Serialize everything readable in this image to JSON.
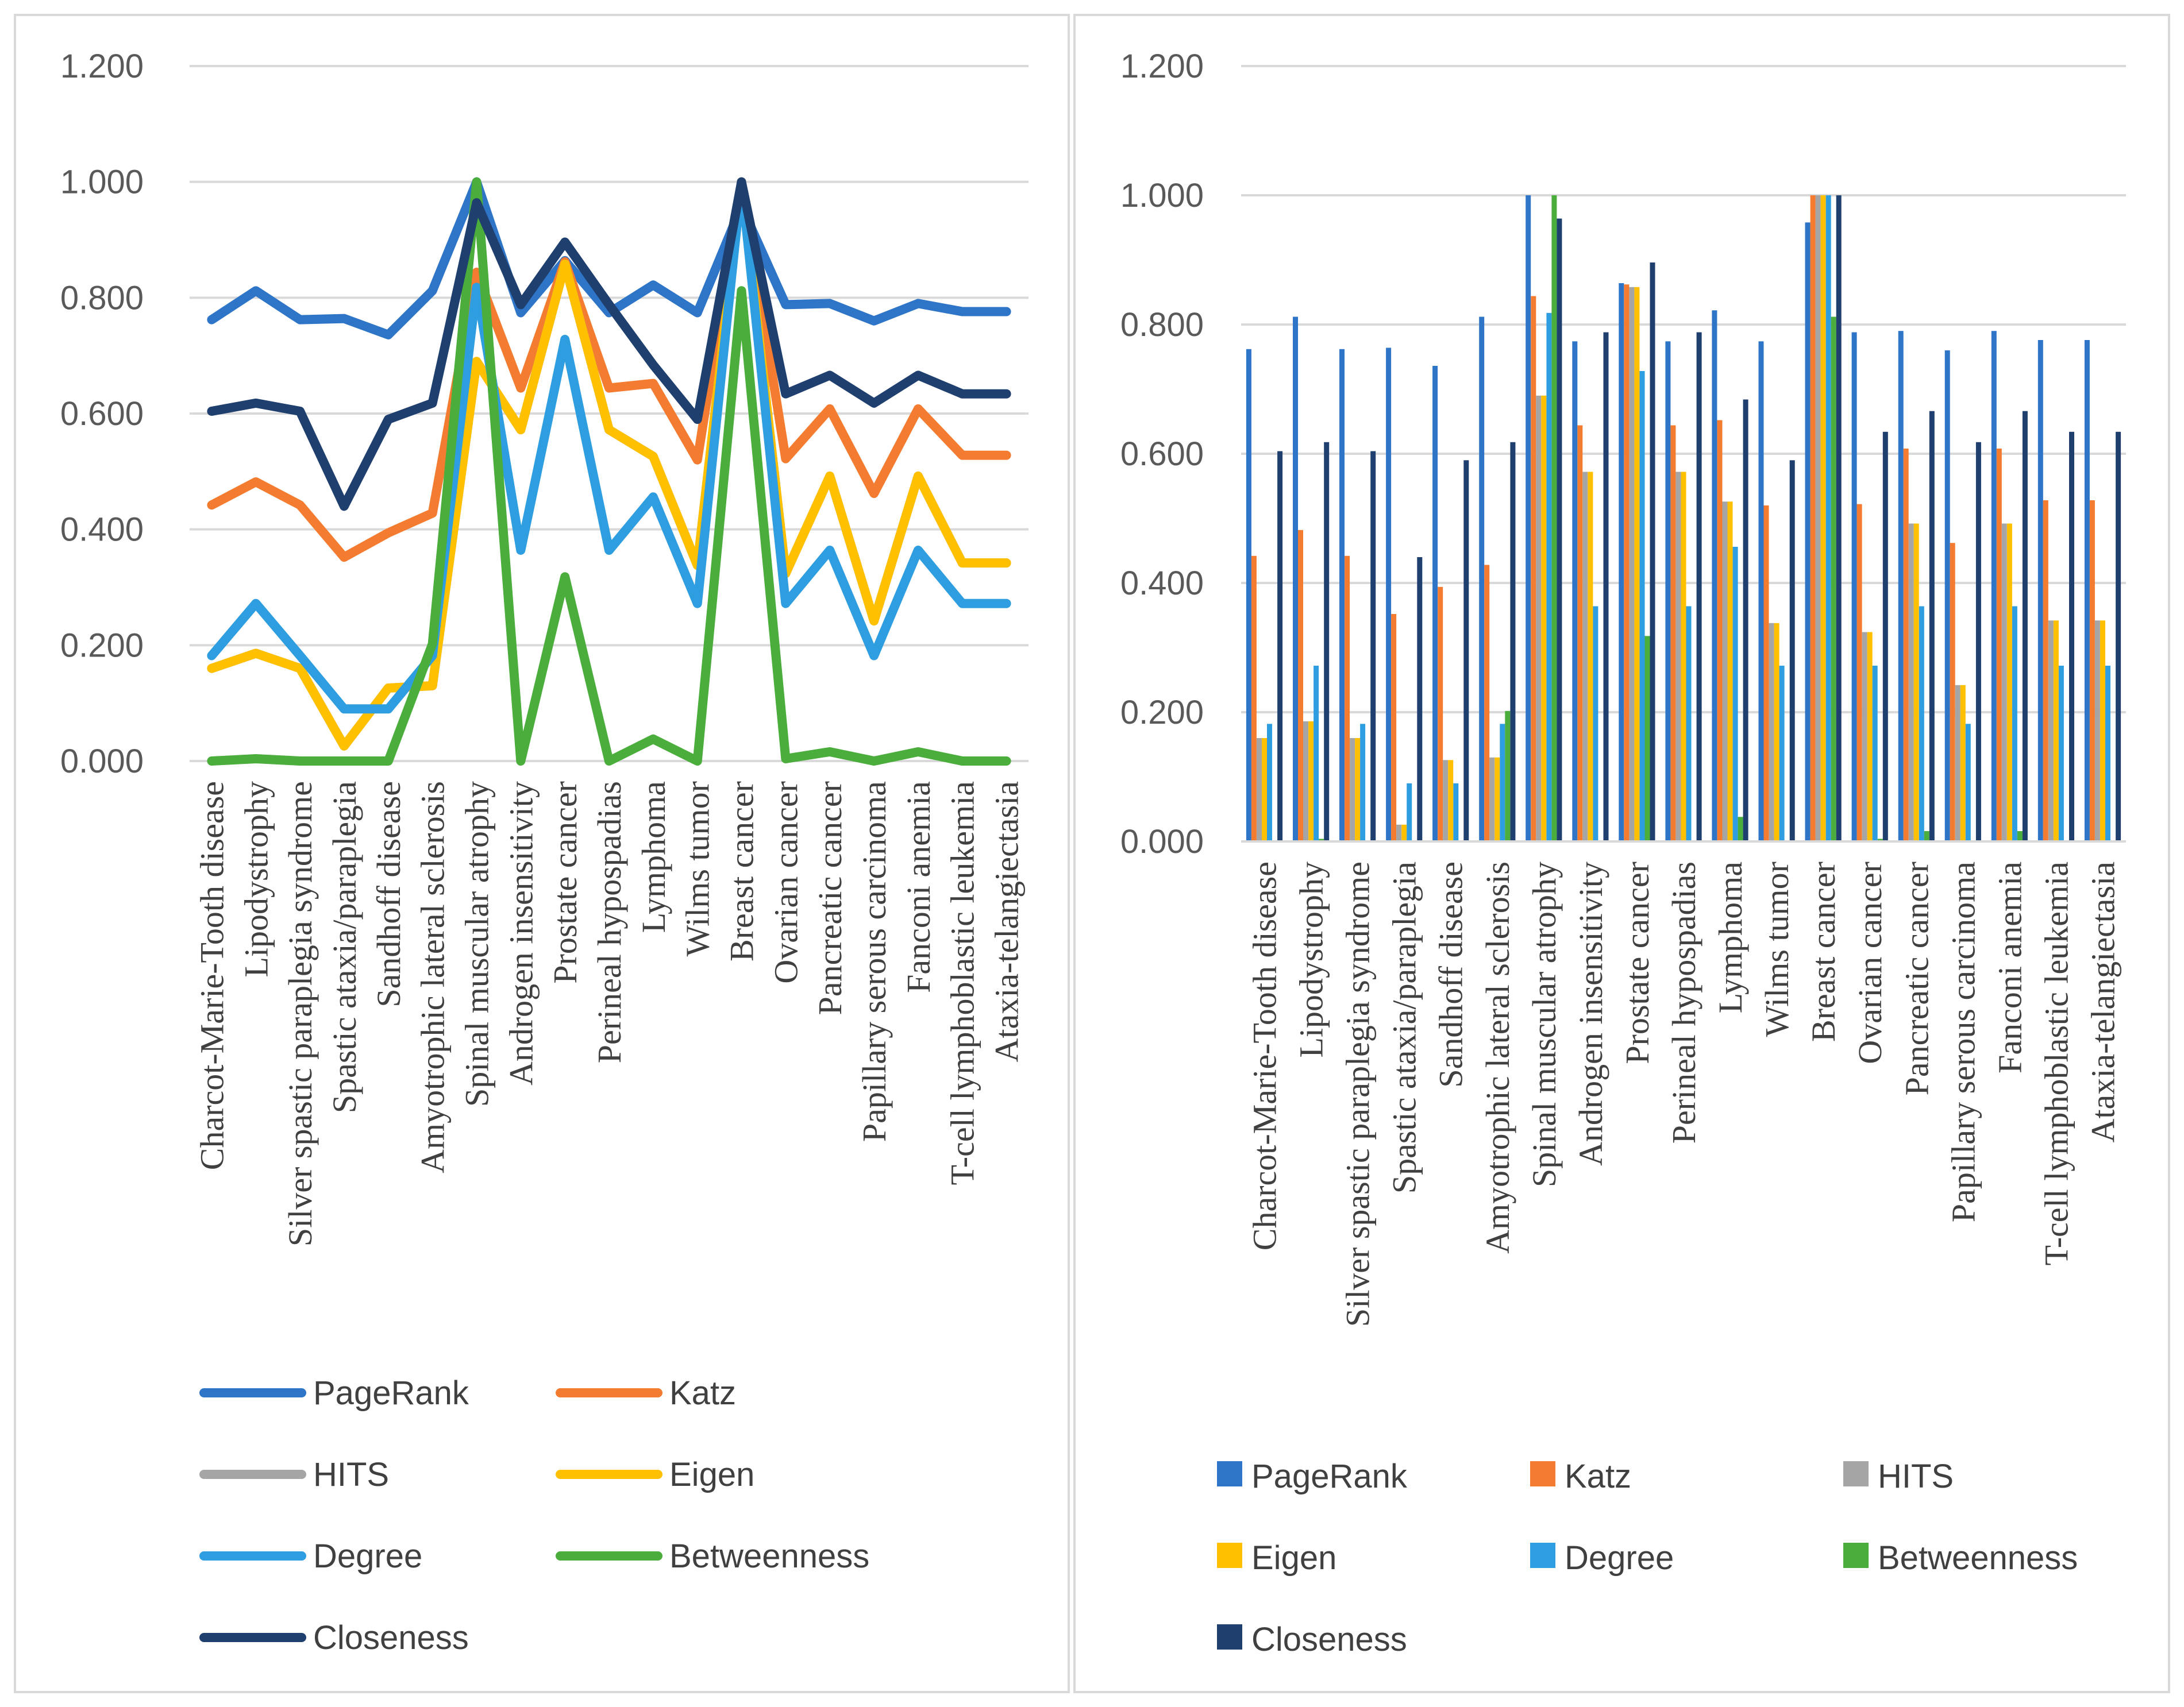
{
  "colors": {
    "PageRank": "#2e75c8",
    "Katz": "#f47c30",
    "HITS": "#a5a5a5",
    "Eigen": "#ffc000",
    "Degree": "#2f9ee0",
    "Betweenness": "#4aad3c",
    "Closeness": "#1f3f6e"
  },
  "chart_data": [
    {
      "type": "line",
      "title": "",
      "xlabel": "",
      "ylabel": "",
      "ylim": [
        0,
        1.2
      ],
      "yticks": [
        "0.000",
        "0.200",
        "0.400",
        "0.600",
        "0.800",
        "1.000",
        "1.200"
      ],
      "grid": true,
      "legend": "bottom",
      "categories": [
        "Charcot-Marie-Tooth disease",
        "Lipodystrophy",
        "Silver spastic paraplegia syndrome",
        "Spastic ataxia/paraplegia",
        "Sandhoff disease",
        "Amyotrophic lateral sclerosis",
        "Spinal muscular atrophy",
        "Androgen insensitivity",
        "Prostate cancer",
        "Perineal hypospadias",
        "Lymphoma",
        "Wilms tumor",
        "Breast cancer",
        "Ovarian cancer",
        "Pancreatic cancer",
        "Papillary serous carcinoma",
        "Fanconi anemia",
        "T-cell lymphoblastic leukemia",
        "Ataxia-telangiectasia"
      ],
      "series": [
        {
          "name": "PageRank",
          "values": [
            0.762,
            0.812,
            0.762,
            0.764,
            0.736,
            0.812,
            1.0,
            0.774,
            0.864,
            0.774,
            0.822,
            0.774,
            0.958,
            0.788,
            0.79,
            0.76,
            0.79,
            0.776,
            0.776
          ]
        },
        {
          "name": "Katz",
          "values": [
            0.442,
            0.482,
            0.442,
            0.352,
            0.394,
            0.428,
            0.844,
            0.644,
            0.862,
            0.644,
            0.652,
            0.52,
            1.0,
            0.522,
            0.608,
            0.462,
            0.608,
            0.528,
            0.528
          ]
        },
        {
          "name": "HITS",
          "values": [
            0.16,
            0.186,
            0.16,
            0.026,
            0.126,
            0.13,
            0.69,
            0.572,
            0.858,
            0.572,
            0.526,
            0.338,
            1.0,
            0.324,
            0.492,
            0.242,
            0.492,
            0.342,
            0.342
          ]
        },
        {
          "name": "Eigen",
          "values": [
            0.16,
            0.186,
            0.16,
            0.026,
            0.126,
            0.13,
            0.69,
            0.572,
            0.858,
            0.572,
            0.526,
            0.338,
            1.0,
            0.324,
            0.492,
            0.242,
            0.492,
            0.342,
            0.342
          ]
        },
        {
          "name": "Degree",
          "values": [
            0.182,
            0.272,
            0.182,
            0.09,
            0.09,
            0.182,
            0.818,
            0.364,
            0.728,
            0.364,
            0.456,
            0.272,
            1.0,
            0.272,
            0.364,
            0.182,
            0.364,
            0.272,
            0.272
          ]
        },
        {
          "name": "Betweenness",
          "values": [
            0.0,
            0.004,
            0.0,
            0.0,
            0.0,
            0.202,
            1.0,
            0.0,
            0.318,
            0.0,
            0.038,
            0.0,
            0.812,
            0.004,
            0.016,
            0.0,
            0.016,
            0.0,
            0.0
          ]
        },
        {
          "name": "Closeness",
          "values": [
            0.604,
            0.618,
            0.604,
            0.44,
            0.59,
            0.618,
            0.964,
            0.788,
            0.896,
            0.788,
            0.684,
            0.59,
            1.0,
            0.634,
            0.666,
            0.618,
            0.666,
            0.634,
            0.634
          ]
        }
      ]
    },
    {
      "type": "bar",
      "title": "",
      "xlabel": "",
      "ylabel": "",
      "ylim": [
        0,
        1.2
      ],
      "yticks": [
        "0.000",
        "0.200",
        "0.400",
        "0.600",
        "0.800",
        "1.000",
        "1.200"
      ],
      "grid": true,
      "legend": "bottom",
      "categories": [
        "Charcot-Marie-Tooth disease",
        "Lipodystrophy",
        "Silver spastic paraplegia syndrome",
        "Spastic ataxia/paraplegia",
        "Sandhoff disease",
        "Amyotrophic lateral sclerosis",
        "Spinal muscular atrophy",
        "Androgen insensitivity",
        "Prostate cancer",
        "Perineal hypospadias",
        "Lymphoma",
        "Wilms tumor",
        "Breast cancer",
        "Ovarian cancer",
        "Pancreatic cancer",
        "Papillary serous carcinoma",
        "Fanconi anemia",
        "T-cell lymphoblastic leukemia",
        "Ataxia-telangiectasia"
      ],
      "series": [
        {
          "name": "PageRank",
          "values": [
            0.762,
            0.812,
            0.762,
            0.764,
            0.736,
            0.812,
            1.0,
            0.774,
            0.864,
            0.774,
            0.822,
            0.774,
            0.958,
            0.788,
            0.79,
            0.76,
            0.79,
            0.776,
            0.776
          ]
        },
        {
          "name": "Katz",
          "values": [
            0.442,
            0.482,
            0.442,
            0.352,
            0.394,
            0.428,
            0.844,
            0.644,
            0.862,
            0.644,
            0.652,
            0.52,
            1.0,
            0.522,
            0.608,
            0.462,
            0.608,
            0.528,
            0.528
          ]
        },
        {
          "name": "HITS",
          "values": [
            0.16,
            0.186,
            0.16,
            0.026,
            0.126,
            0.13,
            0.69,
            0.572,
            0.858,
            0.572,
            0.526,
            0.338,
            1.0,
            0.324,
            0.492,
            0.242,
            0.492,
            0.342,
            0.342
          ]
        },
        {
          "name": "Eigen",
          "values": [
            0.16,
            0.186,
            0.16,
            0.026,
            0.126,
            0.13,
            0.69,
            0.572,
            0.858,
            0.572,
            0.526,
            0.338,
            1.0,
            0.324,
            0.492,
            0.242,
            0.492,
            0.342,
            0.342
          ]
        },
        {
          "name": "Degree",
          "values": [
            0.182,
            0.272,
            0.182,
            0.09,
            0.09,
            0.182,
            0.818,
            0.364,
            0.728,
            0.364,
            0.456,
            0.272,
            1.0,
            0.272,
            0.364,
            0.182,
            0.364,
            0.272,
            0.272
          ]
        },
        {
          "name": "Betweenness",
          "values": [
            0.0,
            0.004,
            0.0,
            0.0,
            0.0,
            0.202,
            1.0,
            0.0,
            0.318,
            0.0,
            0.038,
            0.0,
            0.812,
            0.004,
            0.016,
            0.0,
            0.016,
            0.0,
            0.0
          ]
        },
        {
          "name": "Closeness",
          "values": [
            0.604,
            0.618,
            0.604,
            0.44,
            0.59,
            0.618,
            0.964,
            0.788,
            0.896,
            0.788,
            0.684,
            0.59,
            1.0,
            0.634,
            0.666,
            0.618,
            0.666,
            0.634,
            0.634
          ]
        }
      ]
    }
  ]
}
